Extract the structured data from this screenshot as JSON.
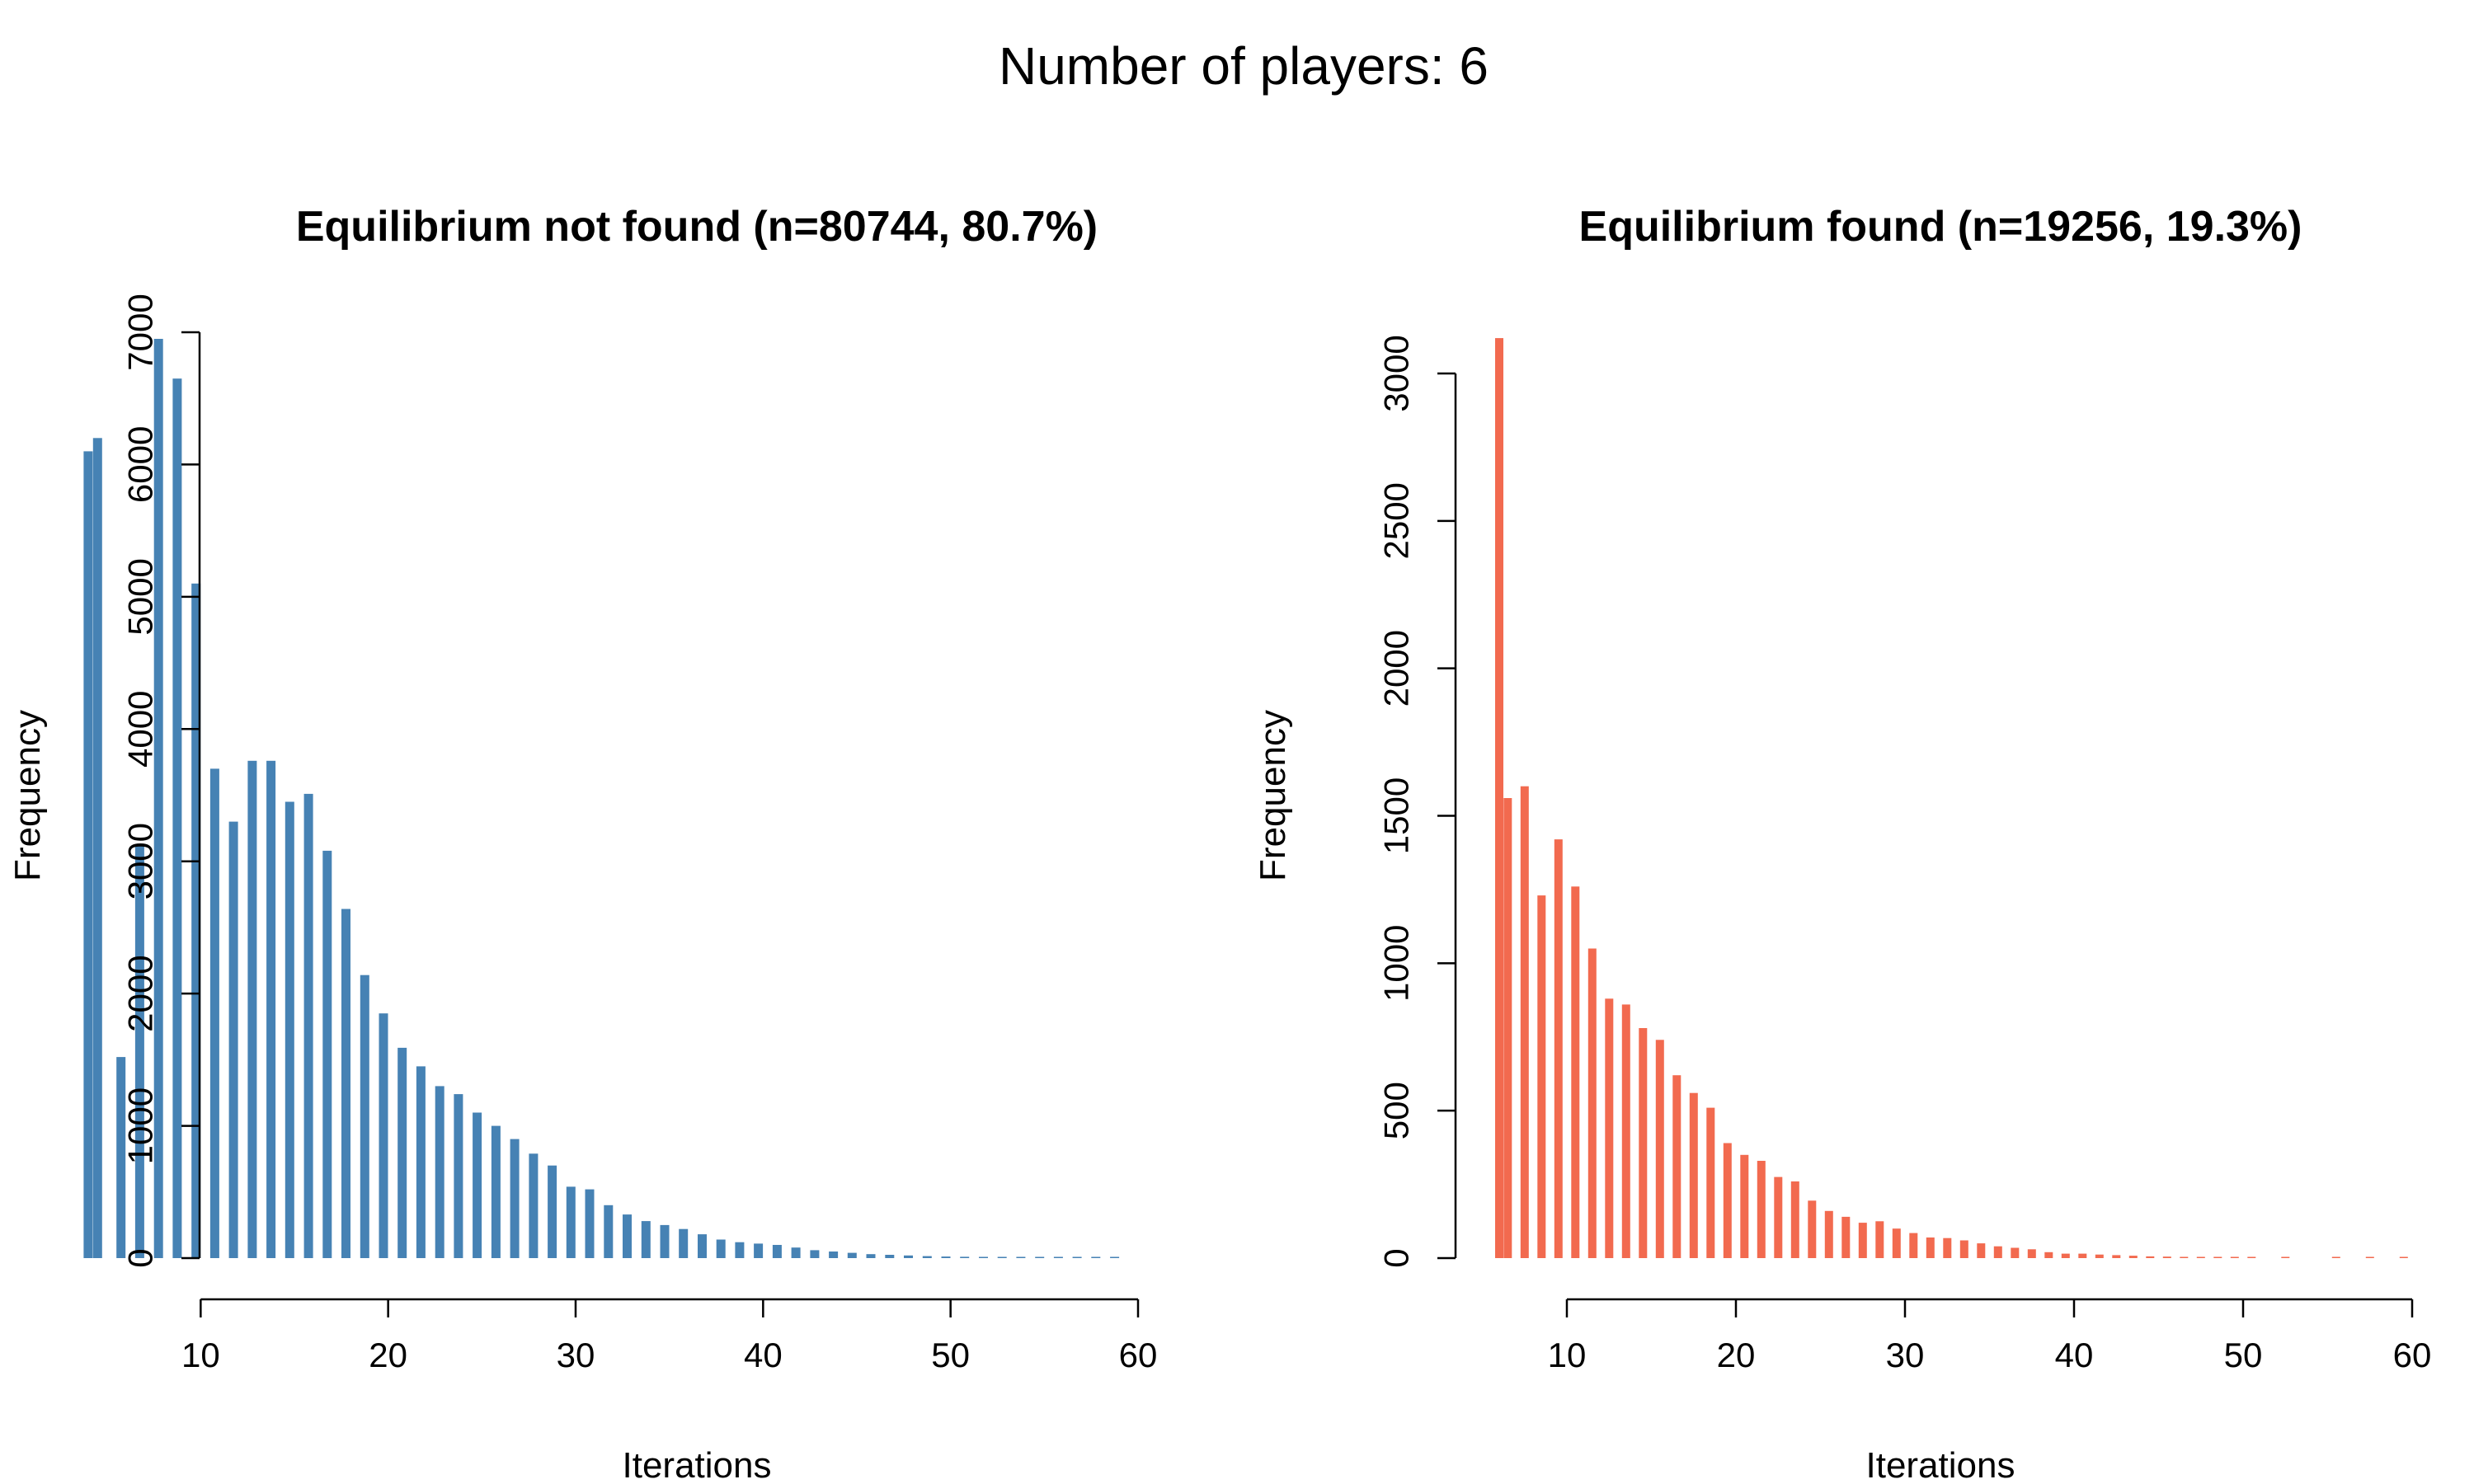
{
  "figure": {
    "title": "Number of players: 6"
  },
  "chart_data": [
    {
      "type": "bar",
      "title": "Equilibrium not found (n=80744, 80.7%)",
      "xlabel": "Iterations",
      "ylabel": "Frequency",
      "color": "#4682B4",
      "xlim": [
        0,
        60
      ],
      "ylim": [
        0,
        7000
      ],
      "xticks": [
        10,
        20,
        30,
        40,
        50,
        60
      ],
      "yticks": [
        0,
        1000,
        2000,
        3000,
        4000,
        5000,
        6000,
        7000
      ],
      "grid": false,
      "x": [
        4,
        4.5,
        5.75,
        6.75,
        7.75,
        8.75,
        9.75,
        10.75,
        11.75,
        12.75,
        13.75,
        14.75,
        15.75,
        16.75,
        17.75,
        18.75,
        19.75,
        20.75,
        21.75,
        22.75,
        23.75,
        24.75,
        25.75,
        26.75,
        27.75,
        28.75,
        29.75,
        30.75,
        31.75,
        32.75,
        33.75,
        34.75,
        35.75,
        36.75,
        37.75,
        38.75,
        39.75,
        40.75,
        41.75,
        42.75,
        43.75,
        44.75,
        45.75,
        46.75,
        47.75,
        48.75,
        49.75,
        50.75,
        51.75,
        52.75,
        53.75,
        54.75,
        55.75,
        56.75,
        57.75,
        58.75
      ],
      "values": [
        6100,
        6200,
        1520,
        3130,
        6950,
        6650,
        5100,
        3700,
        3300,
        3760,
        3760,
        3450,
        3510,
        3080,
        2640,
        2140,
        1850,
        1590,
        1450,
        1300,
        1240,
        1100,
        1000,
        900,
        790,
        700,
        540,
        520,
        400,
        330,
        280,
        250,
        220,
        180,
        140,
        120,
        110,
        100,
        80,
        60,
        50,
        40,
        30,
        25,
        20,
        15,
        12,
        10,
        8,
        6,
        5,
        4,
        3,
        3,
        2,
        2
      ]
    },
    {
      "type": "bar",
      "title": "Equilibrium found (n=19256, 19.3%)",
      "xlabel": "Iterations",
      "ylabel": "Frequency",
      "color": "#F26A4F",
      "xlim": [
        0,
        60
      ],
      "ylim": [
        0,
        3000
      ],
      "xticks": [
        10,
        20,
        30,
        40,
        50,
        60
      ],
      "yticks": [
        0,
        500,
        1000,
        1500,
        2000,
        2500,
        3000
      ],
      "grid": false,
      "x": [
        6,
        6.5,
        7.5,
        8.5,
        9.5,
        10.5,
        11.5,
        12.5,
        13.5,
        14.5,
        15.5,
        16.5,
        17.5,
        18.5,
        19.5,
        20.5,
        21.5,
        22.5,
        23.5,
        24.5,
        25.5,
        26.5,
        27.5,
        28.5,
        29.5,
        30.5,
        31.5,
        32.5,
        33.5,
        34.5,
        35.5,
        36.5,
        37.5,
        38.5,
        39.5,
        40.5,
        41.5,
        42.5,
        43.5,
        44.5,
        45.5,
        46.5,
        47.5,
        48.5,
        49.5,
        50.5,
        52.5,
        55.5,
        57.5,
        59.5
      ],
      "values": [
        3120,
        1560,
        1600,
        1230,
        1420,
        1260,
        1050,
        880,
        860,
        780,
        740,
        620,
        560,
        510,
        390,
        350,
        330,
        275,
        260,
        195,
        160,
        140,
        120,
        125,
        100,
        85,
        70,
        68,
        60,
        50,
        40,
        35,
        30,
        20,
        15,
        15,
        12,
        10,
        8,
        6,
        5,
        4,
        4,
        3,
        3,
        2,
        2,
        2,
        2,
        2
      ]
    }
  ]
}
